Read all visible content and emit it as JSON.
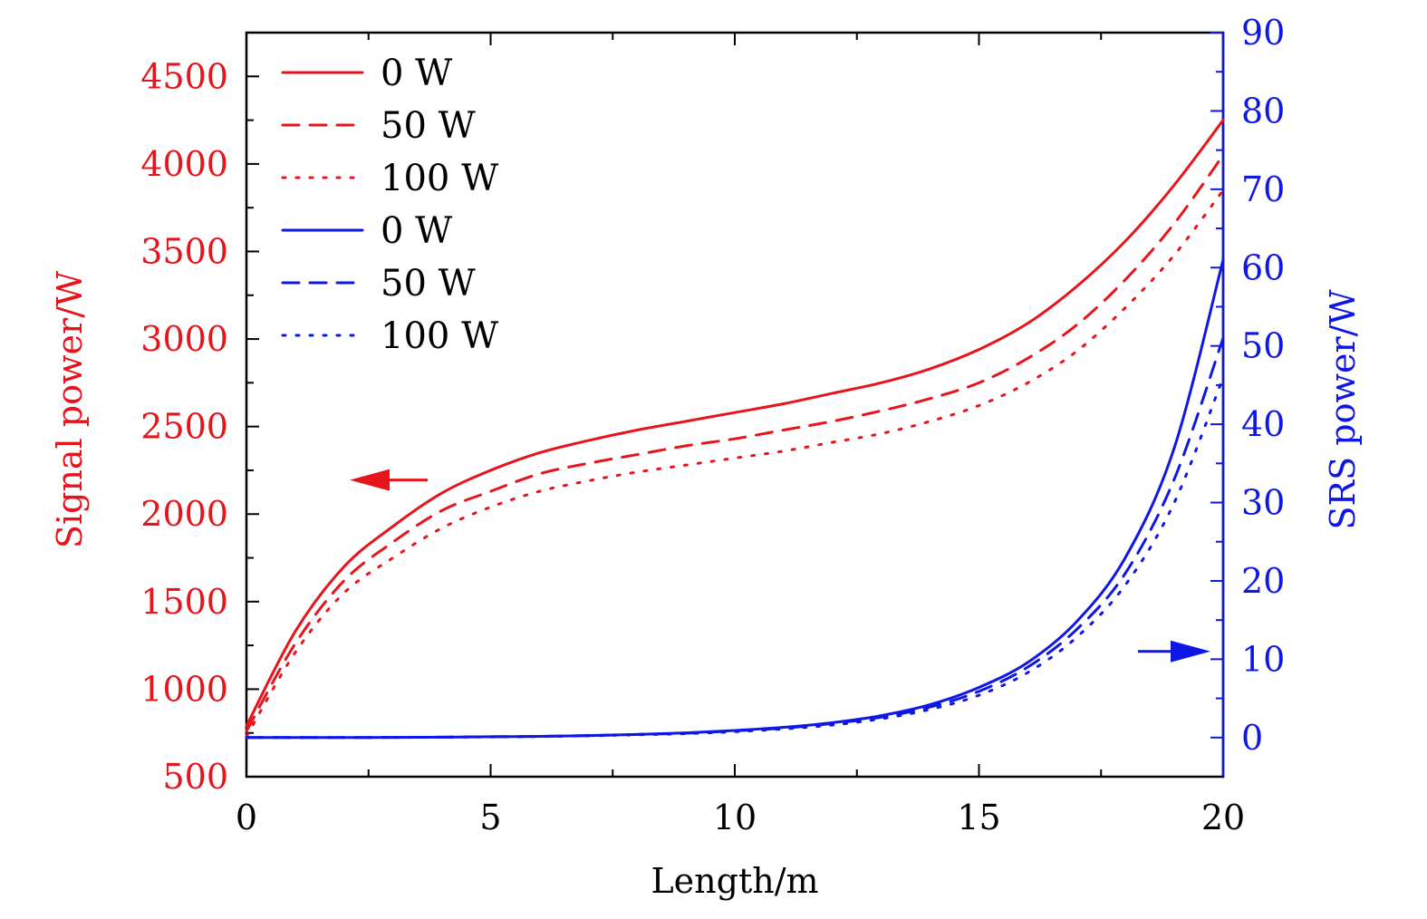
{
  "colors": {
    "signal": "#e8141c",
    "srs": "#0f17e6",
    "axis": "#000000",
    "background": "#ffffff"
  },
  "chart_data": {
    "type": "line",
    "title": "",
    "xlabel": "Length/m",
    "ylabel_left": "Signal power/W",
    "ylabel_right": "SRS power/W",
    "xlim": [
      0,
      20
    ],
    "ylim_left": [
      500,
      4750
    ],
    "ylim_right": [
      -5,
      90
    ],
    "x_ticks": [
      0,
      5,
      10,
      15,
      20
    ],
    "x_tick_labels": [
      "0",
      "5",
      "10",
      "15",
      "20"
    ],
    "y_left_ticks": [
      500,
      1000,
      1500,
      2000,
      2500,
      3000,
      3500,
      4000,
      4500
    ],
    "y_left_tick_labels": [
      "500",
      "1000",
      "1500",
      "2000",
      "2500",
      "3000",
      "3500",
      "4000",
      "4500"
    ],
    "y_right_ticks": [
      0,
      10,
      20,
      30,
      40,
      50,
      60,
      70,
      80,
      90
    ],
    "y_right_tick_labels": [
      "0",
      "10",
      "20",
      "30",
      "40",
      "50",
      "60",
      "70",
      "80",
      "90"
    ],
    "grid": false,
    "legend_position": "top-left",
    "x": [
      0,
      1,
      2,
      3,
      4,
      5,
      6,
      7,
      8,
      9,
      10,
      11,
      12,
      13,
      14,
      15,
      16,
      17,
      18,
      19,
      20
    ],
    "series": [
      {
        "name": "0 W",
        "axis": "left",
        "line_style": "solid",
        "color": "#e8141c",
        "values": [
          790,
          1330,
          1700,
          1930,
          2120,
          2250,
          2350,
          2420,
          2480,
          2530,
          2580,
          2630,
          2690,
          2750,
          2830,
          2940,
          3090,
          3300,
          3560,
          3880,
          4250
        ]
      },
      {
        "name": "50 W",
        "axis": "left",
        "line_style": "dashed",
        "color": "#e8141c",
        "values": [
          760,
          1260,
          1620,
          1840,
          2020,
          2130,
          2230,
          2290,
          2340,
          2390,
          2430,
          2480,
          2530,
          2590,
          2660,
          2750,
          2890,
          3080,
          3340,
          3660,
          4050
        ]
      },
      {
        "name": "100 W",
        "axis": "left",
        "line_style": "dotted",
        "color": "#e8141c",
        "values": [
          730,
          1210,
          1550,
          1750,
          1920,
          2040,
          2130,
          2190,
          2240,
          2280,
          2320,
          2360,
          2410,
          2460,
          2530,
          2620,
          2750,
          2930,
          3180,
          3480,
          3850
        ]
      },
      {
        "name": "0 W",
        "axis": "right",
        "line_style": "solid",
        "color": "#0f17e6",
        "values": [
          0,
          0,
          0,
          0.02,
          0.05,
          0.1,
          0.15,
          0.25,
          0.4,
          0.6,
          0.9,
          1.3,
          1.9,
          2.8,
          4.2,
          6.4,
          9.6,
          14.8,
          23,
          37,
          61
        ]
      },
      {
        "name": "50 W",
        "axis": "right",
        "line_style": "dashed",
        "color": "#0f17e6",
        "values": [
          0,
          0,
          0,
          0.02,
          0.05,
          0.1,
          0.15,
          0.25,
          0.4,
          0.55,
          0.85,
          1.2,
          1.8,
          2.6,
          3.9,
          5.9,
          9.0,
          13.8,
          21,
          33,
          51
        ]
      },
      {
        "name": "100 W",
        "axis": "right",
        "line_style": "dotted",
        "color": "#0f17e6",
        "values": [
          0,
          0,
          0,
          0.02,
          0.04,
          0.08,
          0.13,
          0.22,
          0.35,
          0.5,
          0.75,
          1.1,
          1.6,
          2.4,
          3.6,
          5.4,
          8.3,
          12.8,
          19.5,
          30,
          46
        ]
      }
    ],
    "annotations": [
      {
        "type": "arrow",
        "direction": "left",
        "axis": "left",
        "color": "#e8141c"
      },
      {
        "type": "arrow",
        "direction": "right",
        "axis": "right",
        "color": "#0f17e6"
      }
    ]
  }
}
